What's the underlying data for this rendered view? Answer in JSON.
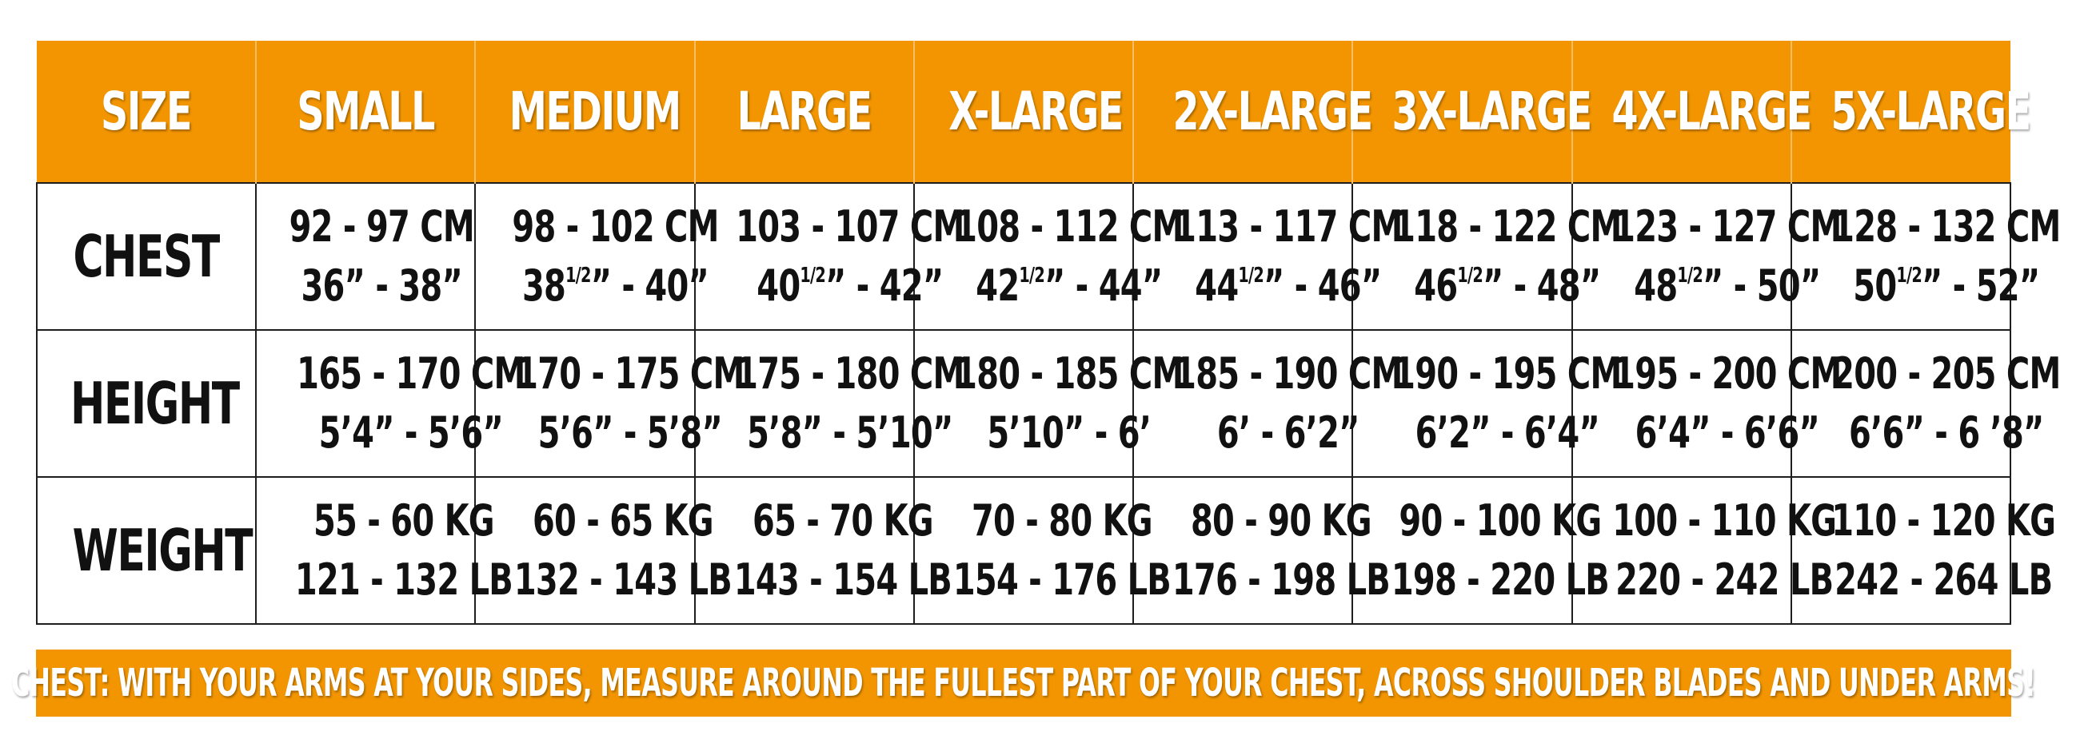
{
  "header": {
    "labels": [
      "SIZE",
      "SMALL",
      "MEDIUM",
      "LARGE",
      "X-LARGE",
      "2X-LARGE",
      "3X-LARGE",
      "4X-LARGE",
      "5X-LARGE"
    ]
  },
  "rows": [
    {
      "label": "CHEST",
      "cells": [
        {
          "metric": "92 - 97 CM",
          "imperial_main": "36” - 38”",
          "imperial_sup": "",
          "imperial_rest": ""
        },
        {
          "metric": "98 - 102 CM",
          "imperial_main": "38",
          "imperial_sup": "1/2",
          "imperial_rest": "” - 40”"
        },
        {
          "metric": "103 - 107 CM",
          "imperial_main": "40",
          "imperial_sup": "1/2",
          "imperial_rest": "” - 42”"
        },
        {
          "metric": "108 - 112 CM",
          "imperial_main": "42",
          "imperial_sup": "1/2",
          "imperial_rest": "” - 44”"
        },
        {
          "metric": "113 - 117 CM",
          "imperial_main": "44",
          "imperial_sup": "1/2",
          "imperial_rest": "” - 46”"
        },
        {
          "metric": "118 - 122 CM",
          "imperial_main": "46",
          "imperial_sup": "1/2",
          "imperial_rest": "” - 48”"
        },
        {
          "metric": "123 - 127 CM",
          "imperial_main": "48",
          "imperial_sup": "1/2",
          "imperial_rest": "” - 50”"
        },
        {
          "metric": "128 - 132 CM",
          "imperial_main": "50",
          "imperial_sup": "1/2",
          "imperial_rest": "” - 52”"
        }
      ]
    },
    {
      "label": "HEIGHT",
      "cells": [
        {
          "metric": "165 - 170 CM",
          "imperial": "5’4” - 5’6”"
        },
        {
          "metric": "170 - 175 CM",
          "imperial": "5’6” - 5’8”"
        },
        {
          "metric": "175 - 180 CM",
          "imperial": "5’8” - 5’10”"
        },
        {
          "metric": "180 - 185 CM",
          "imperial": "5’10” - 6’"
        },
        {
          "metric": "185 - 190 CM",
          "imperial": "6’ - 6’2”"
        },
        {
          "metric": "190 - 195 CM",
          "imperial": "6’2” - 6’4”"
        },
        {
          "metric": "195 - 200 CM",
          "imperial": "6’4” - 6’6”"
        },
        {
          "metric": "200 - 205 CM",
          "imperial": "6’6” - 6 ’8”"
        }
      ]
    },
    {
      "label": "WEIGHT",
      "cells": [
        {
          "metric": "55 - 60 KG",
          "imperial": "121 - 132 LB"
        },
        {
          "metric": "60 - 65 KG",
          "imperial": "132 - 143 LB"
        },
        {
          "metric": "65 - 70 KG",
          "imperial": "143 - 154 LB"
        },
        {
          "metric": "70 - 80 KG",
          "imperial": "154 - 176 LB"
        },
        {
          "metric": "80 - 90 KG",
          "imperial": "176 - 198 LB"
        },
        {
          "metric": "90 - 100 KG",
          "imperial": "198 - 220 LB"
        },
        {
          "metric": "100 - 110 KG",
          "imperial": "220 - 242 LB"
        },
        {
          "metric": "110 - 120 KG",
          "imperial": "242 - 264 LB"
        }
      ]
    }
  ],
  "footnote": "CHEST: WITH YOUR ARMS AT YOUR SIDES, MEASURE AROUND THE FULLEST PART OF YOUR CHEST, ACROSS SHOULDER BLADES AND UNDER ARMS!",
  "colors": {
    "accent": "#f29500",
    "text": "#111111",
    "border": "#1e1e1e",
    "header_text": "#ffffff"
  }
}
